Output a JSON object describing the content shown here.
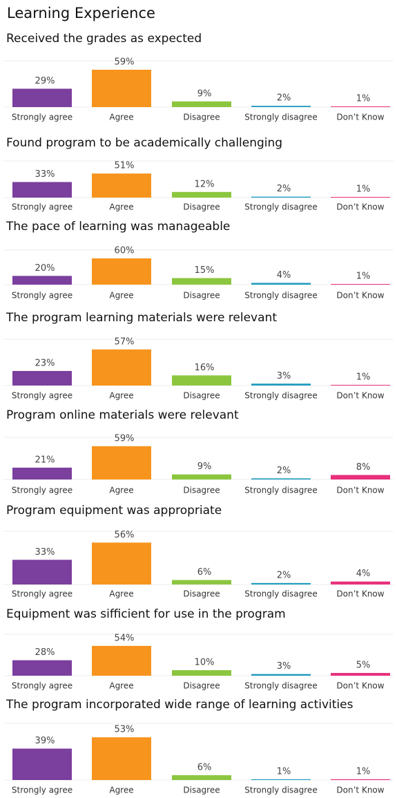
{
  "title": "Learning Experience",
  "chart_data": [
    {
      "type": "bar",
      "title": "Received the grades as expected",
      "categories": [
        "Strongly agree",
        "Agree",
        "Disagree",
        "Strongly disagree",
        "Don’t Know"
      ],
      "values": [
        29,
        59,
        9,
        2,
        1
      ],
      "value_labels": [
        "29%",
        "59%",
        "9%",
        "2%",
        "1%"
      ],
      "colors": [
        "#7b3f9e",
        "#f7941d",
        "#8cc63f",
        "#1f9bbf",
        "#e8307c"
      ],
      "ylim": [
        0,
        60
      ]
    },
    {
      "type": "bar",
      "title": "Found program to be academically challenging",
      "categories": [
        "Strongly agree",
        "Agree",
        "Disagree",
        "Strongly disagree",
        "Don’t Know"
      ],
      "values": [
        33,
        51,
        12,
        2,
        1
      ],
      "value_labels": [
        "33%",
        "51%",
        "12%",
        "2%",
        "1%"
      ],
      "colors": [
        "#7b3f9e",
        "#f7941d",
        "#8cc63f",
        "#1f9bbf",
        "#e8307c"
      ],
      "ylim": [
        0,
        60
      ]
    },
    {
      "type": "bar",
      "title": "The pace of learning was manageable",
      "categories": [
        "Strongly agree",
        "Agree",
        "Disagree",
        "Strongly disagree",
        "Don’t Know"
      ],
      "values": [
        20,
        60,
        15,
        4,
        1
      ],
      "value_labels": [
        "20%",
        "60%",
        "15%",
        "4%",
        "1%"
      ],
      "colors": [
        "#7b3f9e",
        "#f7941d",
        "#8cc63f",
        "#1f9bbf",
        "#e8307c"
      ],
      "ylim": [
        0,
        60
      ]
    },
    {
      "type": "bar",
      "title": "The program learning materials were relevant",
      "categories": [
        "Strongly agree",
        "Agree",
        "Disagree",
        "Strongly disagree",
        "Don’t Know"
      ],
      "values": [
        23,
        57,
        16,
        3,
        1
      ],
      "value_labels": [
        "23%",
        "57%",
        "16%",
        "3%",
        "1%"
      ],
      "colors": [
        "#7b3f9e",
        "#f7941d",
        "#8cc63f",
        "#1f9bbf",
        "#e8307c"
      ],
      "ylim": [
        0,
        60
      ]
    },
    {
      "type": "bar",
      "title": "Program online materials were relevant",
      "categories": [
        "Strongly agree",
        "Agree",
        "Disagree",
        "Strongly disagree",
        "Don’t Know"
      ],
      "values": [
        21,
        59,
        9,
        2,
        8
      ],
      "value_labels": [
        "21%",
        "59%",
        "9%",
        "2%",
        "8%"
      ],
      "colors": [
        "#7b3f9e",
        "#f7941d",
        "#8cc63f",
        "#1f9bbf",
        "#e8307c"
      ],
      "ylim": [
        0,
        60
      ]
    },
    {
      "type": "bar",
      "title": "Program equipment was appropriate",
      "categories": [
        "Strongly agree",
        "Agree",
        "Disagree",
        "Strongly disagree",
        "Don’t Know"
      ],
      "values": [
        33,
        56,
        6,
        2,
        4
      ],
      "value_labels": [
        "33%",
        "56%",
        "6%",
        "2%",
        "4%"
      ],
      "colors": [
        "#7b3f9e",
        "#f7941d",
        "#8cc63f",
        "#1f9bbf",
        "#e8307c"
      ],
      "ylim": [
        0,
        60
      ]
    },
    {
      "type": "bar",
      "title": "Equipment was sifficient for use in the program",
      "categories": [
        "Strongly agree",
        "Agree",
        "Disagree",
        "Strongly disagree",
        "Don’t Know"
      ],
      "values": [
        28,
        54,
        10,
        3,
        5
      ],
      "value_labels": [
        "28%",
        "54%",
        "10%",
        "3%",
        "5%"
      ],
      "colors": [
        "#7b3f9e",
        "#f7941d",
        "#8cc63f",
        "#1f9bbf",
        "#e8307c"
      ],
      "ylim": [
        0,
        60
      ]
    },
    {
      "type": "bar",
      "title": "The program incorporated wide range of learning activities",
      "categories": [
        "Strongly agree",
        "Agree",
        "Disagree",
        "Strongly disagree",
        "Don’t Know"
      ],
      "values": [
        39,
        53,
        6,
        1,
        1
      ],
      "value_labels": [
        "39%",
        "53%",
        "6%",
        "1%",
        "1%"
      ],
      "colors": [
        "#7b3f9e",
        "#f7941d",
        "#8cc63f",
        "#1f9bbf",
        "#e8307c"
      ],
      "ylim": [
        0,
        60
      ]
    }
  ]
}
